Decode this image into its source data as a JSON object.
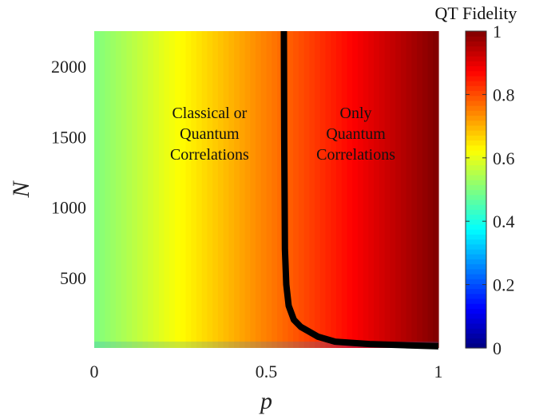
{
  "chart_data": {
    "type": "heatmap",
    "xlabel": "p",
    "ylabel": "N",
    "xlim": [
      0,
      1
    ],
    "ylim": [
      0,
      2250
    ],
    "x_ticks": [
      "0",
      "0.5",
      "1"
    ],
    "y_ticks": [
      "500",
      "1000",
      "1500",
      "2000"
    ],
    "colorbar": {
      "title": "QT Fidelity",
      "range": [
        0,
        1
      ],
      "ticks": [
        "0",
        "0.2",
        "0.4",
        "0.6",
        "0.8",
        "1"
      ],
      "colormap": "jet"
    },
    "fidelity_model": "F = (1 + p) / 2",
    "boundary": {
      "p": [
        0.551,
        0.552,
        0.554,
        0.558,
        0.565,
        0.58,
        0.6,
        0.65,
        0.7,
        0.8,
        0.9,
        1.0
      ],
      "N": [
        2250,
        1500,
        700,
        450,
        300,
        200,
        150,
        80,
        45,
        28,
        20,
        12
      ]
    },
    "annotations": [
      {
        "lines": [
          "Classical or",
          "Quantum",
          "Correlations"
        ],
        "p": 0.335,
        "N": 1525
      },
      {
        "lines": [
          "Only",
          "Quantum",
          "Correlations"
        ],
        "p": 0.76,
        "N": 1525
      }
    ]
  }
}
